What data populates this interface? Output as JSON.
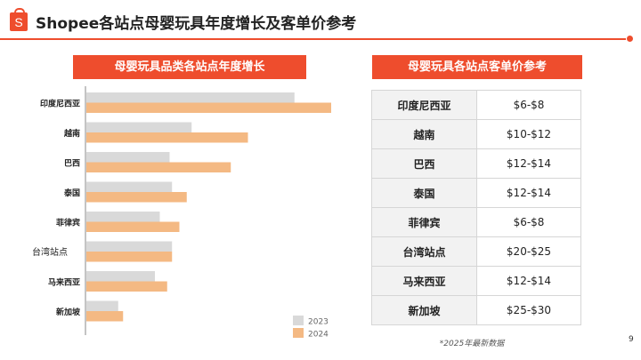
{
  "title": "Shopee各站点母婴玩具年度增长及客单价参考",
  "brand_color": "#ee4d2d",
  "logo_letter": "S",
  "left_header": "母婴玩具品类各站点年度增长",
  "right_header": "母婴玩具各站点客单价参考",
  "chart_data": {
    "type": "bar",
    "orientation": "horizontal",
    "categories": [
      "印度尼西亚",
      "越南",
      "巴西",
      "泰国",
      "菲律宾",
      "台湾站点",
      "马来西亚",
      "新加坡"
    ],
    "series": [
      {
        "name": "2023",
        "color": "#d9d9d9",
        "values": [
          85,
          43,
          34,
          35,
          30,
          35,
          28,
          13
        ]
      },
      {
        "name": "2024",
        "color": "#f4b983",
        "values": [
          100,
          66,
          59,
          41,
          38,
          35,
          33,
          15
        ]
      }
    ],
    "xlim": [
      0,
      100
    ],
    "value_axis_labels": false,
    "grid": false,
    "legend": "bottom-right"
  },
  "table": {
    "rows": [
      {
        "site": "印度尼西亚",
        "price": "$6-$8"
      },
      {
        "site": "越南",
        "price": "$10-$12"
      },
      {
        "site": "巴西",
        "price": "$12-$14"
      },
      {
        "site": "泰国",
        "price": "$12-$14"
      },
      {
        "site": "菲律宾",
        "price": "$6-$8"
      },
      {
        "site": "台湾站点",
        "price": "$20-$25"
      },
      {
        "site": "马来西亚",
        "price": "$12-$14"
      },
      {
        "site": "新加坡",
        "price": "$25-$30"
      }
    ]
  },
  "footnote": "*2025年最新数据",
  "page_number": "9"
}
